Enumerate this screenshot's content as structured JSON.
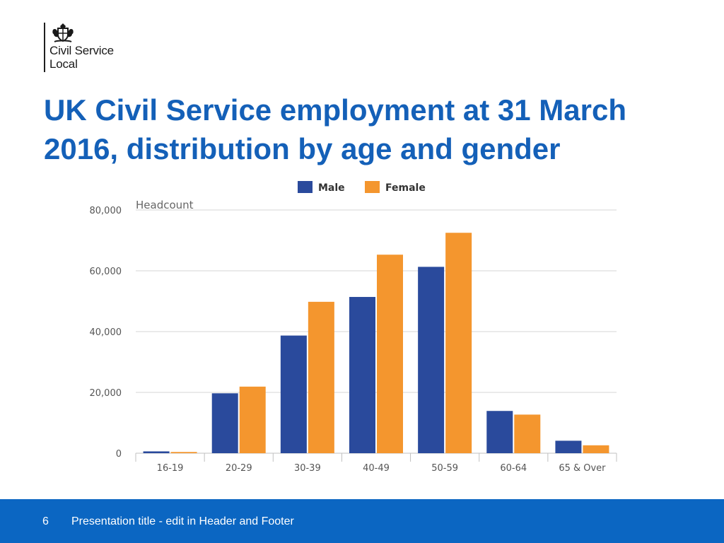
{
  "logo": {
    "line1": "Civil Service",
    "line2": "Local",
    "crest_icon": "royal-coat-of-arms-icon"
  },
  "slide": {
    "title_line1": "UK Civil Service employment at 31 March",
    "title_line2": "2016, distribution by age and gender"
  },
  "chart_data": {
    "type": "bar",
    "title": "",
    "ylabel": "Headcount",
    "xlabel": "",
    "categories": [
      "16-19",
      "20-29",
      "30-39",
      "40-49",
      "50-59",
      "60-64",
      "65 & Over"
    ],
    "series": [
      {
        "name": "Male",
        "color": "#2a4a9c",
        "values": [
          600,
          19700,
          38700,
          51400,
          61300,
          13900,
          4100
        ]
      },
      {
        "name": "Female",
        "color": "#f4962e",
        "values": [
          400,
          21900,
          49800,
          65300,
          72500,
          12700,
          2600
        ]
      }
    ],
    "ylim": [
      0,
      80000
    ],
    "yticks": [
      0,
      20000,
      40000,
      60000,
      80000
    ],
    "ytick_labels": [
      "0",
      "20,000",
      "40,000",
      "60,000",
      "80,000"
    ],
    "grid": true,
    "legend": "top-center"
  },
  "footer": {
    "slide_number": "6",
    "text": "Presentation title - edit in Header and Footer"
  }
}
